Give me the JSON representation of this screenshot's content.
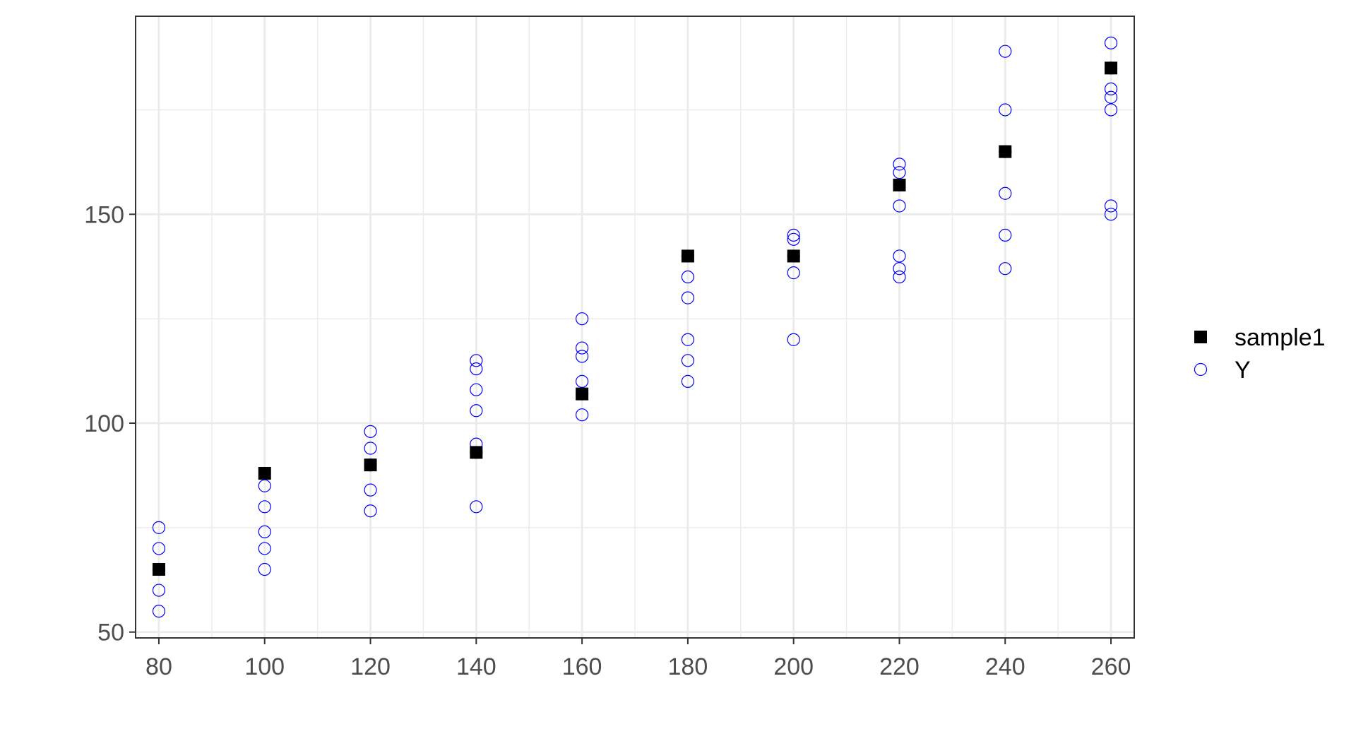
{
  "chart_data": {
    "type": "scatter",
    "title": "",
    "xlabel": "",
    "ylabel": "",
    "xlim": [
      75.6,
      264.4
    ],
    "ylim": [
      48.6,
      197.4
    ],
    "x_ticks": [
      80,
      100,
      120,
      140,
      160,
      180,
      200,
      220,
      240,
      260
    ],
    "y_ticks": [
      50,
      100,
      150
    ],
    "grid": true,
    "legend_position": "right",
    "series": [
      {
        "name": "sample1",
        "marker": "filled-square",
        "color": "#000000",
        "points": [
          [
            80,
            65
          ],
          [
            100,
            88
          ],
          [
            120,
            90
          ],
          [
            140,
            93
          ],
          [
            160,
            107
          ],
          [
            180,
            140
          ],
          [
            200,
            140
          ],
          [
            220,
            157
          ],
          [
            240,
            165
          ],
          [
            260,
            185
          ]
        ]
      },
      {
        "name": "Y",
        "marker": "open-circle",
        "color": "#0000ff",
        "points": [
          [
            80,
            55
          ],
          [
            80,
            60
          ],
          [
            80,
            65
          ],
          [
            80,
            70
          ],
          [
            80,
            75
          ],
          [
            100,
            65
          ],
          [
            100,
            70
          ],
          [
            100,
            74
          ],
          [
            100,
            80
          ],
          [
            100,
            85
          ],
          [
            120,
            79
          ],
          [
            120,
            84
          ],
          [
            120,
            90
          ],
          [
            120,
            94
          ],
          [
            120,
            98
          ],
          [
            140,
            80
          ],
          [
            140,
            93
          ],
          [
            140,
            95
          ],
          [
            140,
            103
          ],
          [
            140,
            108
          ],
          [
            140,
            113
          ],
          [
            140,
            115
          ],
          [
            160,
            102
          ],
          [
            160,
            107
          ],
          [
            160,
            110
          ],
          [
            160,
            116
          ],
          [
            160,
            118
          ],
          [
            160,
            125
          ],
          [
            180,
            110
          ],
          [
            180,
            115
          ],
          [
            180,
            120
          ],
          [
            180,
            130
          ],
          [
            180,
            135
          ],
          [
            180,
            140
          ],
          [
            200,
            120
          ],
          [
            200,
            136
          ],
          [
            200,
            140
          ],
          [
            200,
            144
          ],
          [
            200,
            145
          ],
          [
            220,
            135
          ],
          [
            220,
            137
          ],
          [
            220,
            140
          ],
          [
            220,
            152
          ],
          [
            220,
            157
          ],
          [
            220,
            160
          ],
          [
            220,
            162
          ],
          [
            240,
            137
          ],
          [
            240,
            145
          ],
          [
            240,
            155
          ],
          [
            240,
            165
          ],
          [
            240,
            175
          ],
          [
            240,
            189
          ],
          [
            260,
            150
          ],
          [
            260,
            152
          ],
          [
            260,
            175
          ],
          [
            260,
            178
          ],
          [
            260,
            180
          ],
          [
            260,
            185
          ],
          [
            260,
            191
          ]
        ]
      }
    ]
  }
}
